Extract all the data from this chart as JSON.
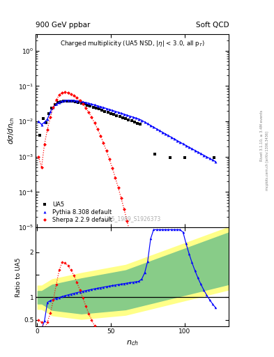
{
  "title_left": "900 GeV ppbar",
  "title_right": "Soft QCD",
  "plot_title": "Charged multiplicity (UA5 NSD, |\\eta| < 3.0, all p_T)",
  "ylabel_main": "d\\sigma/dn_{ch}",
  "ylabel_ratio": "Ratio to UA5",
  "watermark": "UA5_1989_S1926373",
  "right_label1": "Rivet 3.1.10, ≥ 3.4M events",
  "right_label2": "mcplots.cern.ch [arXiv:1306.3436]",
  "legend": [
    "UA5",
    "Pythia 8.308 default",
    "Sherpa 2.2.9 default"
  ],
  "main_ylim": [
    1e-05,
    3.0
  ],
  "ratio_ylim": [
    0.35,
    2.55
  ],
  "xmin": -1,
  "xmax": 130
}
